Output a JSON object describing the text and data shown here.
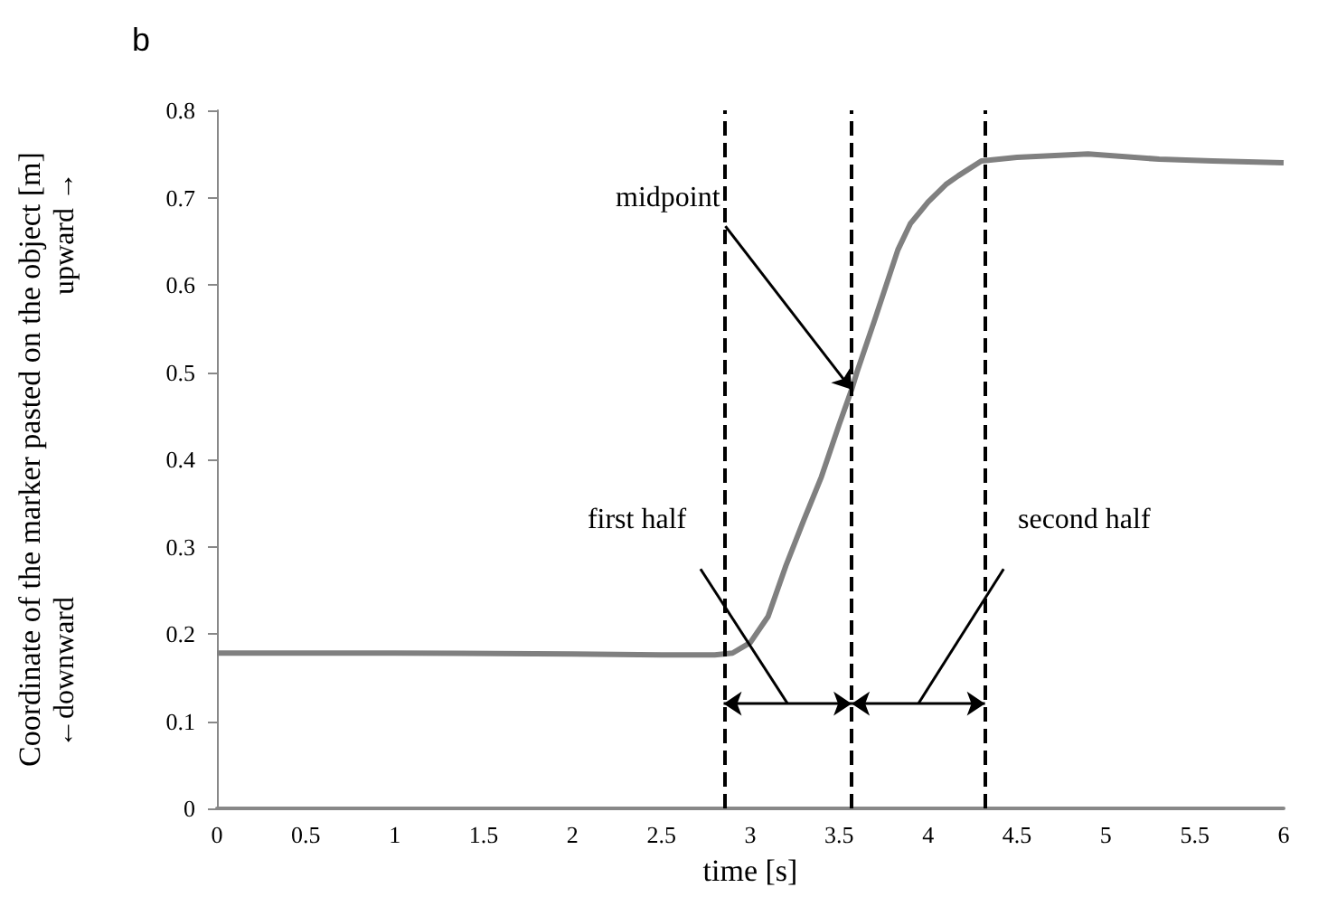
{
  "chart_data": {
    "type": "line",
    "title": "b",
    "xlabel": "time [s]",
    "ylabel": "Coordinate of the marker pasted on the object [m]",
    "x": [
      0,
      1,
      2,
      2.5,
      2.8,
      2.9,
      3.0,
      3.1,
      3.2,
      3.3,
      3.4,
      3.5,
      3.57,
      3.6,
      3.7,
      3.83,
      3.9,
      4.0,
      4.1,
      4.17,
      4.3,
      4.5,
      4.9,
      5.3,
      5.6,
      6
    ],
    "series": [
      {
        "color": "#808080",
        "values": [
          0.178,
          0.178,
          0.177,
          0.176,
          0.176,
          0.178,
          0.19,
          0.22,
          0.278,
          0.33,
          0.38,
          0.44,
          0.48,
          0.5,
          0.56,
          0.64,
          0.67,
          0.695,
          0.715,
          0.725,
          0.742,
          0.746,
          0.75,
          0.744,
          0.742,
          0.74
        ]
      }
    ],
    "xlim": [
      0,
      6
    ],
    "xticks": [
      0,
      0.5,
      1,
      1.5,
      2,
      2.5,
      3,
      3.5,
      4,
      4.5,
      5,
      5.5,
      6
    ],
    "ylim": [
      0,
      0.8
    ],
    "yticks": [
      0,
      0.1,
      0.2,
      0.3,
      0.4,
      0.5,
      0.6,
      0.7,
      0.8
    ],
    "ref_lines": [
      {
        "axis": "x",
        "value": 2.85,
        "color": "#000000",
        "line_style": "dashed"
      },
      {
        "axis": "x",
        "value": 3.57,
        "color": "#000000",
        "line_style": "dashed"
      },
      {
        "axis": "x",
        "value": 4.32,
        "color": "#000000",
        "line_style": "dashed"
      }
    ],
    "annotations": [
      {
        "text": "midpoint",
        "x": 3.57,
        "y": 0.48
      },
      "first half",
      "second half",
      "←downward",
      "upward →"
    ],
    "grid": false,
    "marker": "none",
    "line_style": "solid"
  }
}
